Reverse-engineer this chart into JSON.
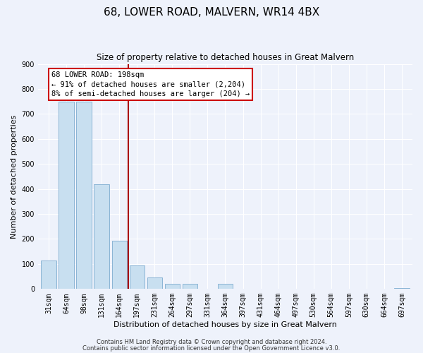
{
  "title": "68, LOWER ROAD, MALVERN, WR14 4BX",
  "subtitle": "Size of property relative to detached houses in Great Malvern",
  "xlabel": "Distribution of detached houses by size in Great Malvern",
  "ylabel": "Number of detached properties",
  "bar_labels": [
    "31sqm",
    "64sqm",
    "98sqm",
    "131sqm",
    "164sqm",
    "197sqm",
    "231sqm",
    "264sqm",
    "297sqm",
    "331sqm",
    "364sqm",
    "397sqm",
    "431sqm",
    "464sqm",
    "497sqm",
    "530sqm",
    "564sqm",
    "597sqm",
    "630sqm",
    "664sqm",
    "697sqm"
  ],
  "bar_values": [
    113,
    750,
    750,
    420,
    193,
    93,
    47,
    22,
    22,
    0,
    20,
    0,
    0,
    0,
    0,
    0,
    0,
    0,
    0,
    0,
    5
  ],
  "bar_color": "#c8dff0",
  "bar_edge_color": "#8ab4d4",
  "vline_position": 4.5,
  "annotation_title": "68 LOWER ROAD: 198sqm",
  "annotation_line1": "← 91% of detached houses are smaller (2,204)",
  "annotation_line2": "8% of semi-detached houses are larger (204) →",
  "annotation_box_color": "#ffffff",
  "annotation_box_edge_color": "#cc0000",
  "vline_color": "#aa0000",
  "ylim": [
    0,
    900
  ],
  "yticks": [
    0,
    100,
    200,
    300,
    400,
    500,
    600,
    700,
    800,
    900
  ],
  "footer_line1": "Contains HM Land Registry data © Crown copyright and database right 2024.",
  "footer_line2": "Contains public sector information licensed under the Open Government Licence v3.0.",
  "bg_color": "#eef2fb",
  "grid_color": "#ffffff",
  "title_fontsize": 11,
  "subtitle_fontsize": 8.5,
  "axis_label_fontsize": 8,
  "tick_fontsize": 7,
  "footer_fontsize": 6
}
